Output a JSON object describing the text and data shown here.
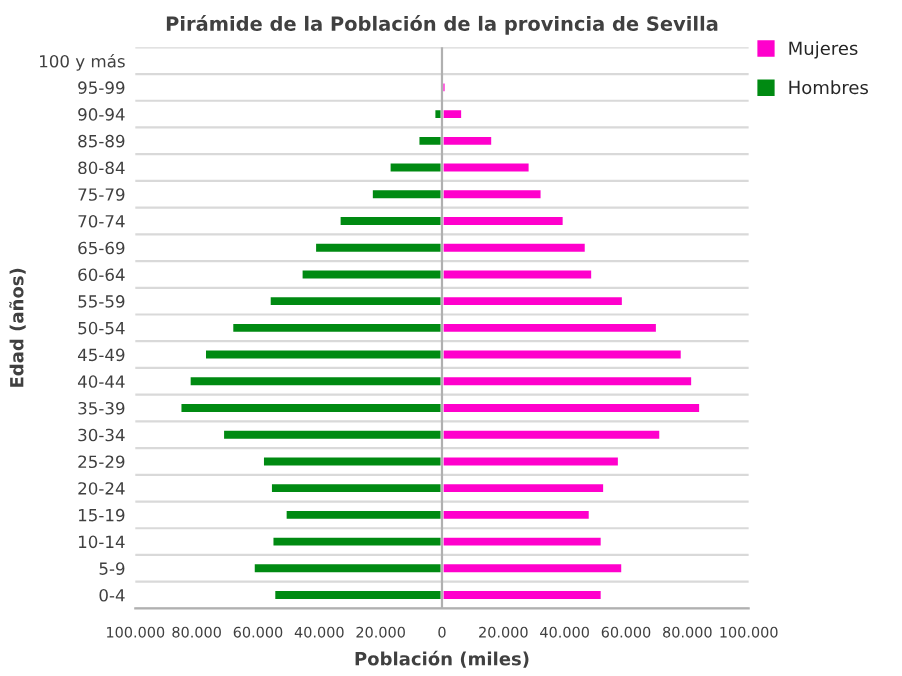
{
  "chart_data": {
    "type": "bar",
    "orientation": "horizontal",
    "title": "Pirámide de la Población de la provincia de Sevilla",
    "xlabel": "Población (miles)",
    "ylabel": "Edad (años)",
    "categories": [
      "100 y más",
      "95-99",
      "90-94",
      "85-89",
      "80-84",
      "75-79",
      "70-74",
      "65-69",
      "60-64",
      "55-59",
      "50-54",
      "45-49",
      "40-44",
      "35-39",
      "30-34",
      "25-29",
      "20-24",
      "15-19",
      "10-14",
      "5-9",
      "0-4"
    ],
    "series": [
      {
        "name": "Mujeres",
        "color": "#ff00cc",
        "values": [
          null,
          1300,
          6700,
          16500,
          28700,
          32600,
          39800,
          47000,
          49100,
          59100,
          70200,
          78300,
          81700,
          84300,
          71300,
          57800,
          53000,
          48300,
          52200,
          58900,
          52200
        ]
      },
      {
        "name": "Hombres",
        "color": "#008a12",
        "values": [
          null,
          null,
          -2600,
          -7800,
          -17200,
          -23000,
          -33500,
          -41500,
          -45900,
          -56300,
          -68500,
          -77400,
          -82400,
          -85400,
          -71500,
          -58500,
          -55900,
          -51100,
          -55400,
          -61500,
          -54800
        ]
      }
    ],
    "xlim": [
      -100000,
      100000
    ],
    "xticks": [
      {
        "value": -100000,
        "label": "100.000"
      },
      {
        "value": -80000,
        "label": "80.000"
      },
      {
        "value": -60000,
        "label": "60.000"
      },
      {
        "value": -40000,
        "label": "40.000"
      },
      {
        "value": -20000,
        "label": "20.000"
      },
      0,
      {
        "value": 20000,
        "label": "20.000"
      },
      {
        "value": 40000,
        "label": "40.000"
      },
      {
        "value": 60000,
        "label": "60.000"
      },
      {
        "value": 80000,
        "label": "80.000"
      },
      {
        "value": 100000,
        "label": "100.000"
      }
    ],
    "ref_lines": [
      {
        "axis": "x",
        "value": 0,
        "color": "#b0b0b0"
      }
    ],
    "grid": "y",
    "legend": "top right",
    "stacked": true
  }
}
